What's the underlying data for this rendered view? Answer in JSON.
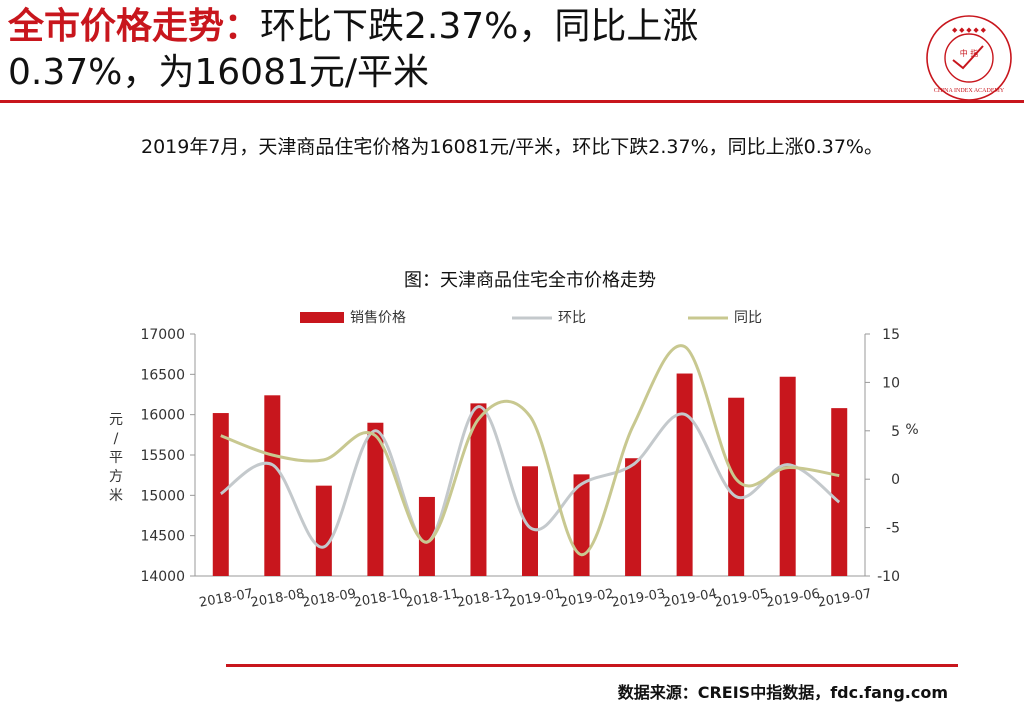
{
  "header": {
    "title_highlight": "全市价格走势：",
    "title_rest_line1": "环比下跌2.37%，同比上涨",
    "title_line2": "0.37%，为16081元/平米",
    "logo_text": "中 指",
    "logo_ring_text": "CHINA INDEX ACADEMY"
  },
  "summary": "2019年7月，天津商品住宅价格为16081元/平米，环比下跌2.37%，同比上涨0.37%。",
  "source": "数据来源：CREIS中指数据，fdc.fang.com",
  "colors": {
    "accent": "#c8161d",
    "bar": "#c8161d",
    "mom_line": "#c4c9cc",
    "yoy_line": "#c8c890"
  },
  "chart_data": {
    "type": "bar",
    "title": "图：天津商品住宅全市价格走势",
    "categories": [
      "2018-07",
      "2018-08",
      "2018-09",
      "2018-10",
      "2018-11",
      "2018-12",
      "2019-01",
      "2019-02",
      "2019-03",
      "2019-04",
      "2019-05",
      "2019-06",
      "2019-07"
    ],
    "series": [
      {
        "name": "销售价格",
        "type": "bar",
        "axis": "left",
        "values": [
          16020,
          16240,
          15120,
          15900,
          14980,
          16140,
          15360,
          15260,
          15460,
          16510,
          16210,
          16470,
          16081
        ]
      },
      {
        "name": "环比",
        "type": "line",
        "axis": "right",
        "values": [
          -1.5,
          1.5,
          -7.0,
          5.0,
          -6.5,
          7.5,
          -5.0,
          -0.5,
          1.5,
          6.7,
          -1.8,
          1.5,
          -2.37
        ]
      },
      {
        "name": "同比",
        "type": "line",
        "axis": "right",
        "values": [
          4.5,
          2.5,
          2.0,
          4.5,
          -6.5,
          6.2,
          6.5,
          -7.8,
          5.5,
          13.7,
          0.0,
          1.2,
          0.37
        ]
      }
    ],
    "y_left": {
      "label": "元/平方米",
      "ylim": [
        14000,
        17000
      ],
      "ticks": [
        14000,
        14500,
        15000,
        15500,
        16000,
        16500,
        17000
      ]
    },
    "y_right": {
      "label": "%",
      "ylim": [
        -10,
        15
      ],
      "ticks": [
        -10,
        -5,
        0,
        5,
        10,
        15
      ]
    },
    "legend": "top",
    "grid": false
  }
}
